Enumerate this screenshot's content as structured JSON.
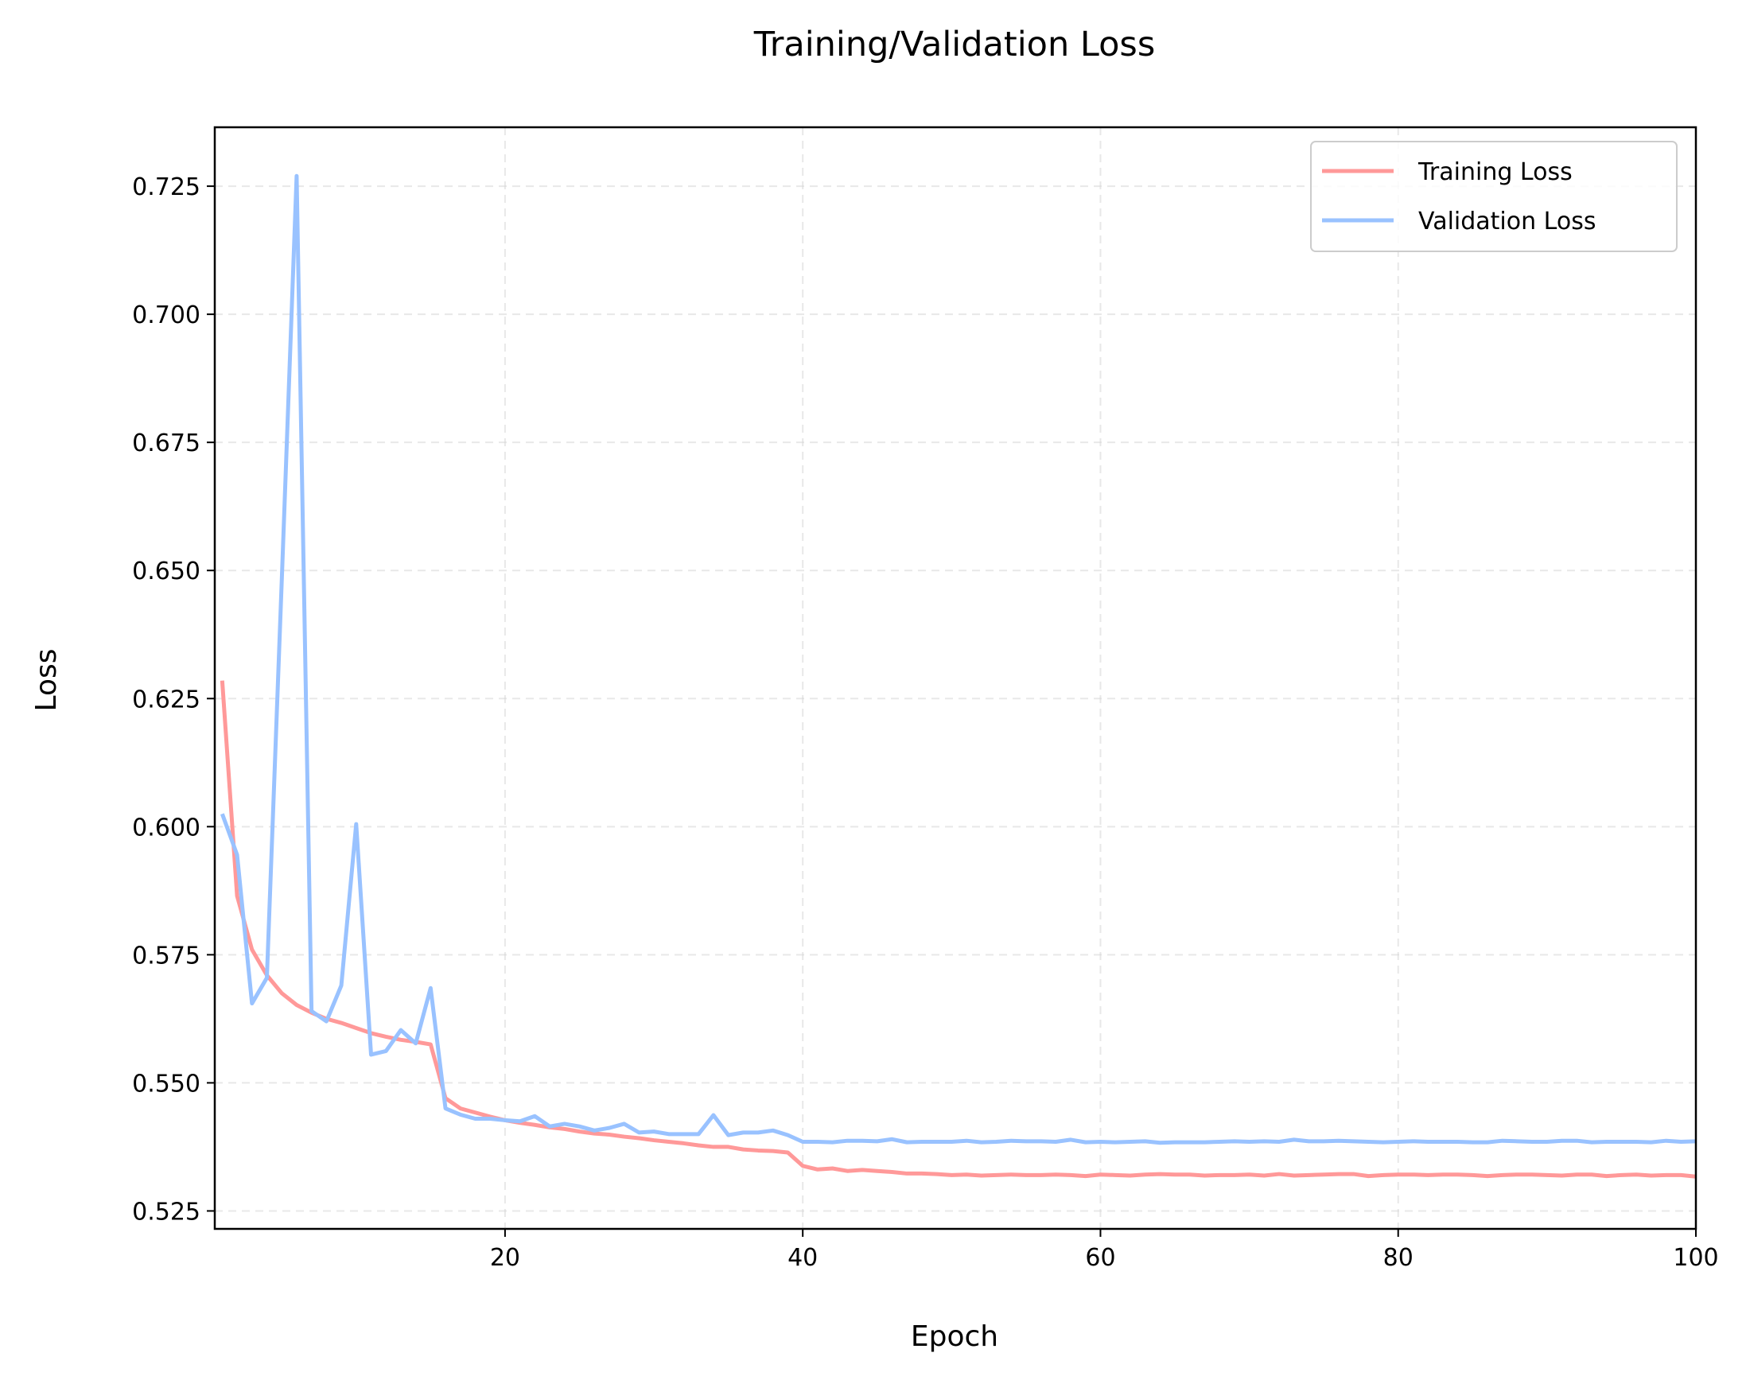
{
  "chart_data": {
    "type": "line",
    "title": "Training/Validation Loss",
    "xlabel": "Epoch",
    "ylabel": "Loss",
    "xlim": [
      0.5,
      100
    ],
    "ylim": [
      0.5215,
      0.7365
    ],
    "xticks": [
      20,
      40,
      60,
      80,
      100
    ],
    "yticks": [
      0.525,
      0.55,
      0.575,
      0.6,
      0.625,
      0.65,
      0.675,
      0.7,
      0.725
    ],
    "grid": true,
    "legend_position": "top-right",
    "x": [
      1,
      2,
      3,
      4,
      5,
      6,
      7,
      8,
      9,
      10,
      11,
      12,
      13,
      14,
      15,
      16,
      17,
      18,
      19,
      20,
      21,
      22,
      23,
      24,
      25,
      26,
      27,
      28,
      29,
      30,
      31,
      32,
      33,
      34,
      35,
      36,
      37,
      38,
      39,
      40,
      41,
      42,
      43,
      44,
      45,
      46,
      47,
      48,
      49,
      50,
      51,
      52,
      53,
      54,
      55,
      56,
      57,
      58,
      59,
      60,
      61,
      62,
      63,
      64,
      65,
      66,
      67,
      68,
      69,
      70,
      71,
      72,
      73,
      74,
      75,
      76,
      77,
      78,
      79,
      80,
      81,
      82,
      83,
      84,
      85,
      86,
      87,
      88,
      89,
      90,
      91,
      92,
      93,
      94,
      95,
      96,
      97,
      98,
      99,
      100
    ],
    "series": [
      {
        "name": "Training Loss",
        "color": "#ff9999",
        "values": [
          0.6285,
          0.5865,
          0.576,
          0.571,
          0.5675,
          0.5652,
          0.5637,
          0.5625,
          0.5617,
          0.5607,
          0.5597,
          0.559,
          0.5584,
          0.558,
          0.5575,
          0.547,
          0.545,
          0.5442,
          0.5434,
          0.5427,
          0.5422,
          0.5418,
          0.5413,
          0.541,
          0.5405,
          0.5401,
          0.5399,
          0.5395,
          0.5392,
          0.5388,
          0.5385,
          0.5382,
          0.5378,
          0.5375,
          0.5375,
          0.537,
          0.5368,
          0.5367,
          0.5364,
          0.5338,
          0.5331,
          0.5333,
          0.5328,
          0.533,
          0.5328,
          0.5326,
          0.5323,
          0.5323,
          0.5322,
          0.532,
          0.5321,
          0.5319,
          0.532,
          0.5321,
          0.532,
          0.532,
          0.5321,
          0.532,
          0.5318,
          0.5321,
          0.532,
          0.5319,
          0.5321,
          0.5322,
          0.5321,
          0.5321,
          0.5319,
          0.532,
          0.532,
          0.5321,
          0.5319,
          0.5322,
          0.5319,
          0.532,
          0.5321,
          0.5322,
          0.5322,
          0.5318,
          0.532,
          0.5321,
          0.5321,
          0.532,
          0.5321,
          0.5321,
          0.532,
          0.5318,
          0.532,
          0.5321,
          0.5321,
          0.532,
          0.5319,
          0.5321,
          0.5321,
          0.5318,
          0.532,
          0.5321,
          0.5319,
          0.532,
          0.532,
          0.5317
        ]
      },
      {
        "name": "Validation Loss",
        "color": "#99c2ff",
        "values": [
          0.6025,
          0.5945,
          0.5655,
          0.5705,
          0.648,
          0.727,
          0.564,
          0.562,
          0.569,
          0.6005,
          0.5555,
          0.5562,
          0.5603,
          0.5577,
          0.5685,
          0.545,
          0.5438,
          0.543,
          0.543,
          0.5427,
          0.5425,
          0.5435,
          0.5415,
          0.542,
          0.5415,
          0.5407,
          0.5412,
          0.542,
          0.5403,
          0.5405,
          0.54,
          0.54,
          0.54,
          0.5437,
          0.5398,
          0.5403,
          0.5403,
          0.5407,
          0.5398,
          0.5385,
          0.5385,
          0.5384,
          0.5387,
          0.5387,
          0.5386,
          0.539,
          0.5384,
          0.5385,
          0.5385,
          0.5385,
          0.5387,
          0.5384,
          0.5385,
          0.5387,
          0.5386,
          0.5386,
          0.5385,
          0.5389,
          0.5384,
          0.5385,
          0.5384,
          0.5385,
          0.5386,
          0.5383,
          0.5384,
          0.5384,
          0.5384,
          0.5385,
          0.5386,
          0.5385,
          0.5386,
          0.5385,
          0.5389,
          0.5386,
          0.5386,
          0.5387,
          0.5386,
          0.5385,
          0.5384,
          0.5385,
          0.5386,
          0.5385,
          0.5385,
          0.5385,
          0.5384,
          0.5384,
          0.5387,
          0.5386,
          0.5385,
          0.5385,
          0.5387,
          0.5387,
          0.5384,
          0.5385,
          0.5385,
          0.5385,
          0.5384,
          0.5387,
          0.5385,
          0.5386
        ]
      }
    ]
  }
}
